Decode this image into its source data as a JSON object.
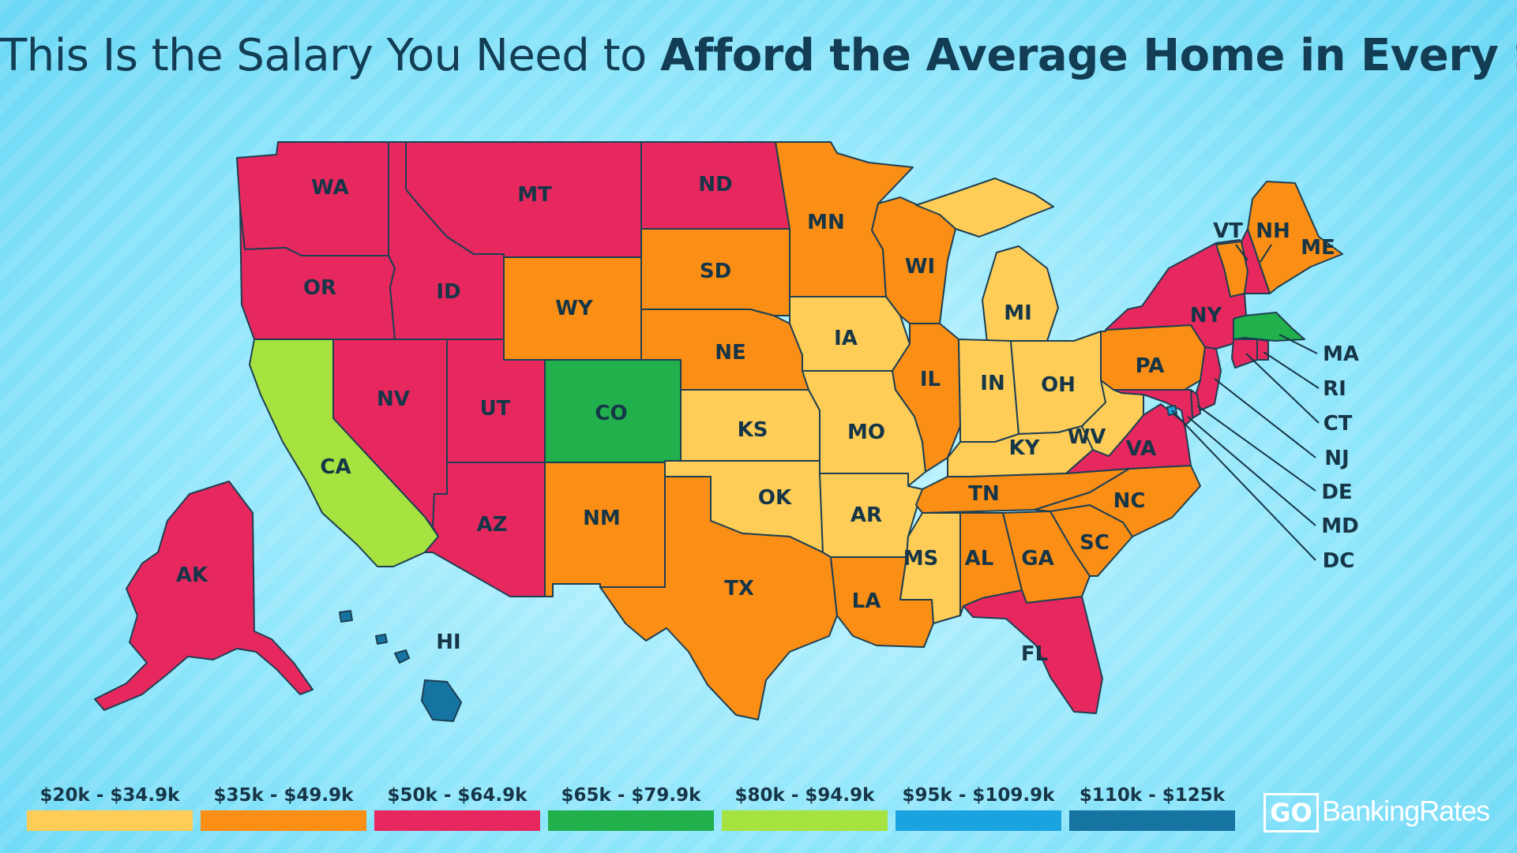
{
  "title": {
    "part1": "This Is the Salary You Need to ",
    "part2": "Afford the Average Home in Every State"
  },
  "legend": [
    {
      "label": "$20k - $34.9k",
      "color": "#fdcd57"
    },
    {
      "label": "$35k - $49.9k",
      "color": "#fb8e15"
    },
    {
      "label": "$50k - $64.9k",
      "color": "#e7285f"
    },
    {
      "label": "$65k - $79.9k",
      "color": "#21b04b"
    },
    {
      "label": "$80k - $94.9k",
      "color": "#a6e340"
    },
    {
      "label": "$95k - $109.9k",
      "color": "#1ba3e0"
    },
    {
      "label": "$110k - $125k",
      "color": "#1674a3"
    }
  ],
  "states": [
    {
      "abbr": "WA",
      "bracket": "$50k - $64.9k"
    },
    {
      "abbr": "OR",
      "bracket": "$50k - $64.9k"
    },
    {
      "abbr": "CA",
      "bracket": "$80k - $94.9k"
    },
    {
      "abbr": "NV",
      "bracket": "$50k - $64.9k"
    },
    {
      "abbr": "ID",
      "bracket": "$50k - $64.9k"
    },
    {
      "abbr": "MT",
      "bracket": "$50k - $64.9k"
    },
    {
      "abbr": "WY",
      "bracket": "$35k - $49.9k"
    },
    {
      "abbr": "UT",
      "bracket": "$50k - $64.9k"
    },
    {
      "abbr": "AZ",
      "bracket": "$50k - $64.9k"
    },
    {
      "abbr": "CO",
      "bracket": "$65k - $79.9k"
    },
    {
      "abbr": "NM",
      "bracket": "$35k - $49.9k"
    },
    {
      "abbr": "ND",
      "bracket": "$50k - $64.9k"
    },
    {
      "abbr": "SD",
      "bracket": "$35k - $49.9k"
    },
    {
      "abbr": "NE",
      "bracket": "$35k - $49.9k"
    },
    {
      "abbr": "KS",
      "bracket": "$20k - $34.9k"
    },
    {
      "abbr": "OK",
      "bracket": "$20k - $34.9k"
    },
    {
      "abbr": "TX",
      "bracket": "$35k - $49.9k"
    },
    {
      "abbr": "MN",
      "bracket": "$35k - $49.9k"
    },
    {
      "abbr": "IA",
      "bracket": "$20k - $34.9k"
    },
    {
      "abbr": "MO",
      "bracket": "$20k - $34.9k"
    },
    {
      "abbr": "AR",
      "bracket": "$20k - $34.9k"
    },
    {
      "abbr": "LA",
      "bracket": "$35k - $49.9k"
    },
    {
      "abbr": "WI",
      "bracket": "$35k - $49.9k"
    },
    {
      "abbr": "IL",
      "bracket": "$35k - $49.9k"
    },
    {
      "abbr": "MI",
      "bracket": "$20k - $34.9k"
    },
    {
      "abbr": "IN",
      "bracket": "$20k - $34.9k"
    },
    {
      "abbr": "OH",
      "bracket": "$20k - $34.9k"
    },
    {
      "abbr": "KY",
      "bracket": "$20k - $34.9k"
    },
    {
      "abbr": "TN",
      "bracket": "$35k - $49.9k"
    },
    {
      "abbr": "MS",
      "bracket": "$20k - $34.9k"
    },
    {
      "abbr": "AL",
      "bracket": "$35k - $49.9k"
    },
    {
      "abbr": "GA",
      "bracket": "$35k - $49.9k"
    },
    {
      "abbr": "FL",
      "bracket": "$50k - $64.9k"
    },
    {
      "abbr": "SC",
      "bracket": "$35k - $49.9k"
    },
    {
      "abbr": "NC",
      "bracket": "$35k - $49.9k"
    },
    {
      "abbr": "VA",
      "bracket": "$50k - $64.9k"
    },
    {
      "abbr": "WV",
      "bracket": "$20k - $34.9k"
    },
    {
      "abbr": "PA",
      "bracket": "$35k - $49.9k"
    },
    {
      "abbr": "NY",
      "bracket": "$50k - $64.9k"
    },
    {
      "abbr": "VT",
      "bracket": "$35k - $49.9k"
    },
    {
      "abbr": "NH",
      "bracket": "$50k - $64.9k"
    },
    {
      "abbr": "ME",
      "bracket": "$35k - $49.9k"
    },
    {
      "abbr": "MA",
      "bracket": "$65k - $79.9k"
    },
    {
      "abbr": "RI",
      "bracket": "$50k - $64.9k"
    },
    {
      "abbr": "CT",
      "bracket": "$50k - $64.9k"
    },
    {
      "abbr": "NJ",
      "bracket": "$50k - $64.9k"
    },
    {
      "abbr": "DE",
      "bracket": "$50k - $64.9k"
    },
    {
      "abbr": "MD",
      "bracket": "$50k - $64.9k"
    },
    {
      "abbr": "DC",
      "bracket": "$95k - $109.9k"
    },
    {
      "abbr": "AK",
      "bracket": "$50k - $64.9k"
    },
    {
      "abbr": "HI",
      "bracket": "$110k - $125k"
    }
  ],
  "brand": {
    "go": "GO",
    "name": "BankingRates"
  }
}
